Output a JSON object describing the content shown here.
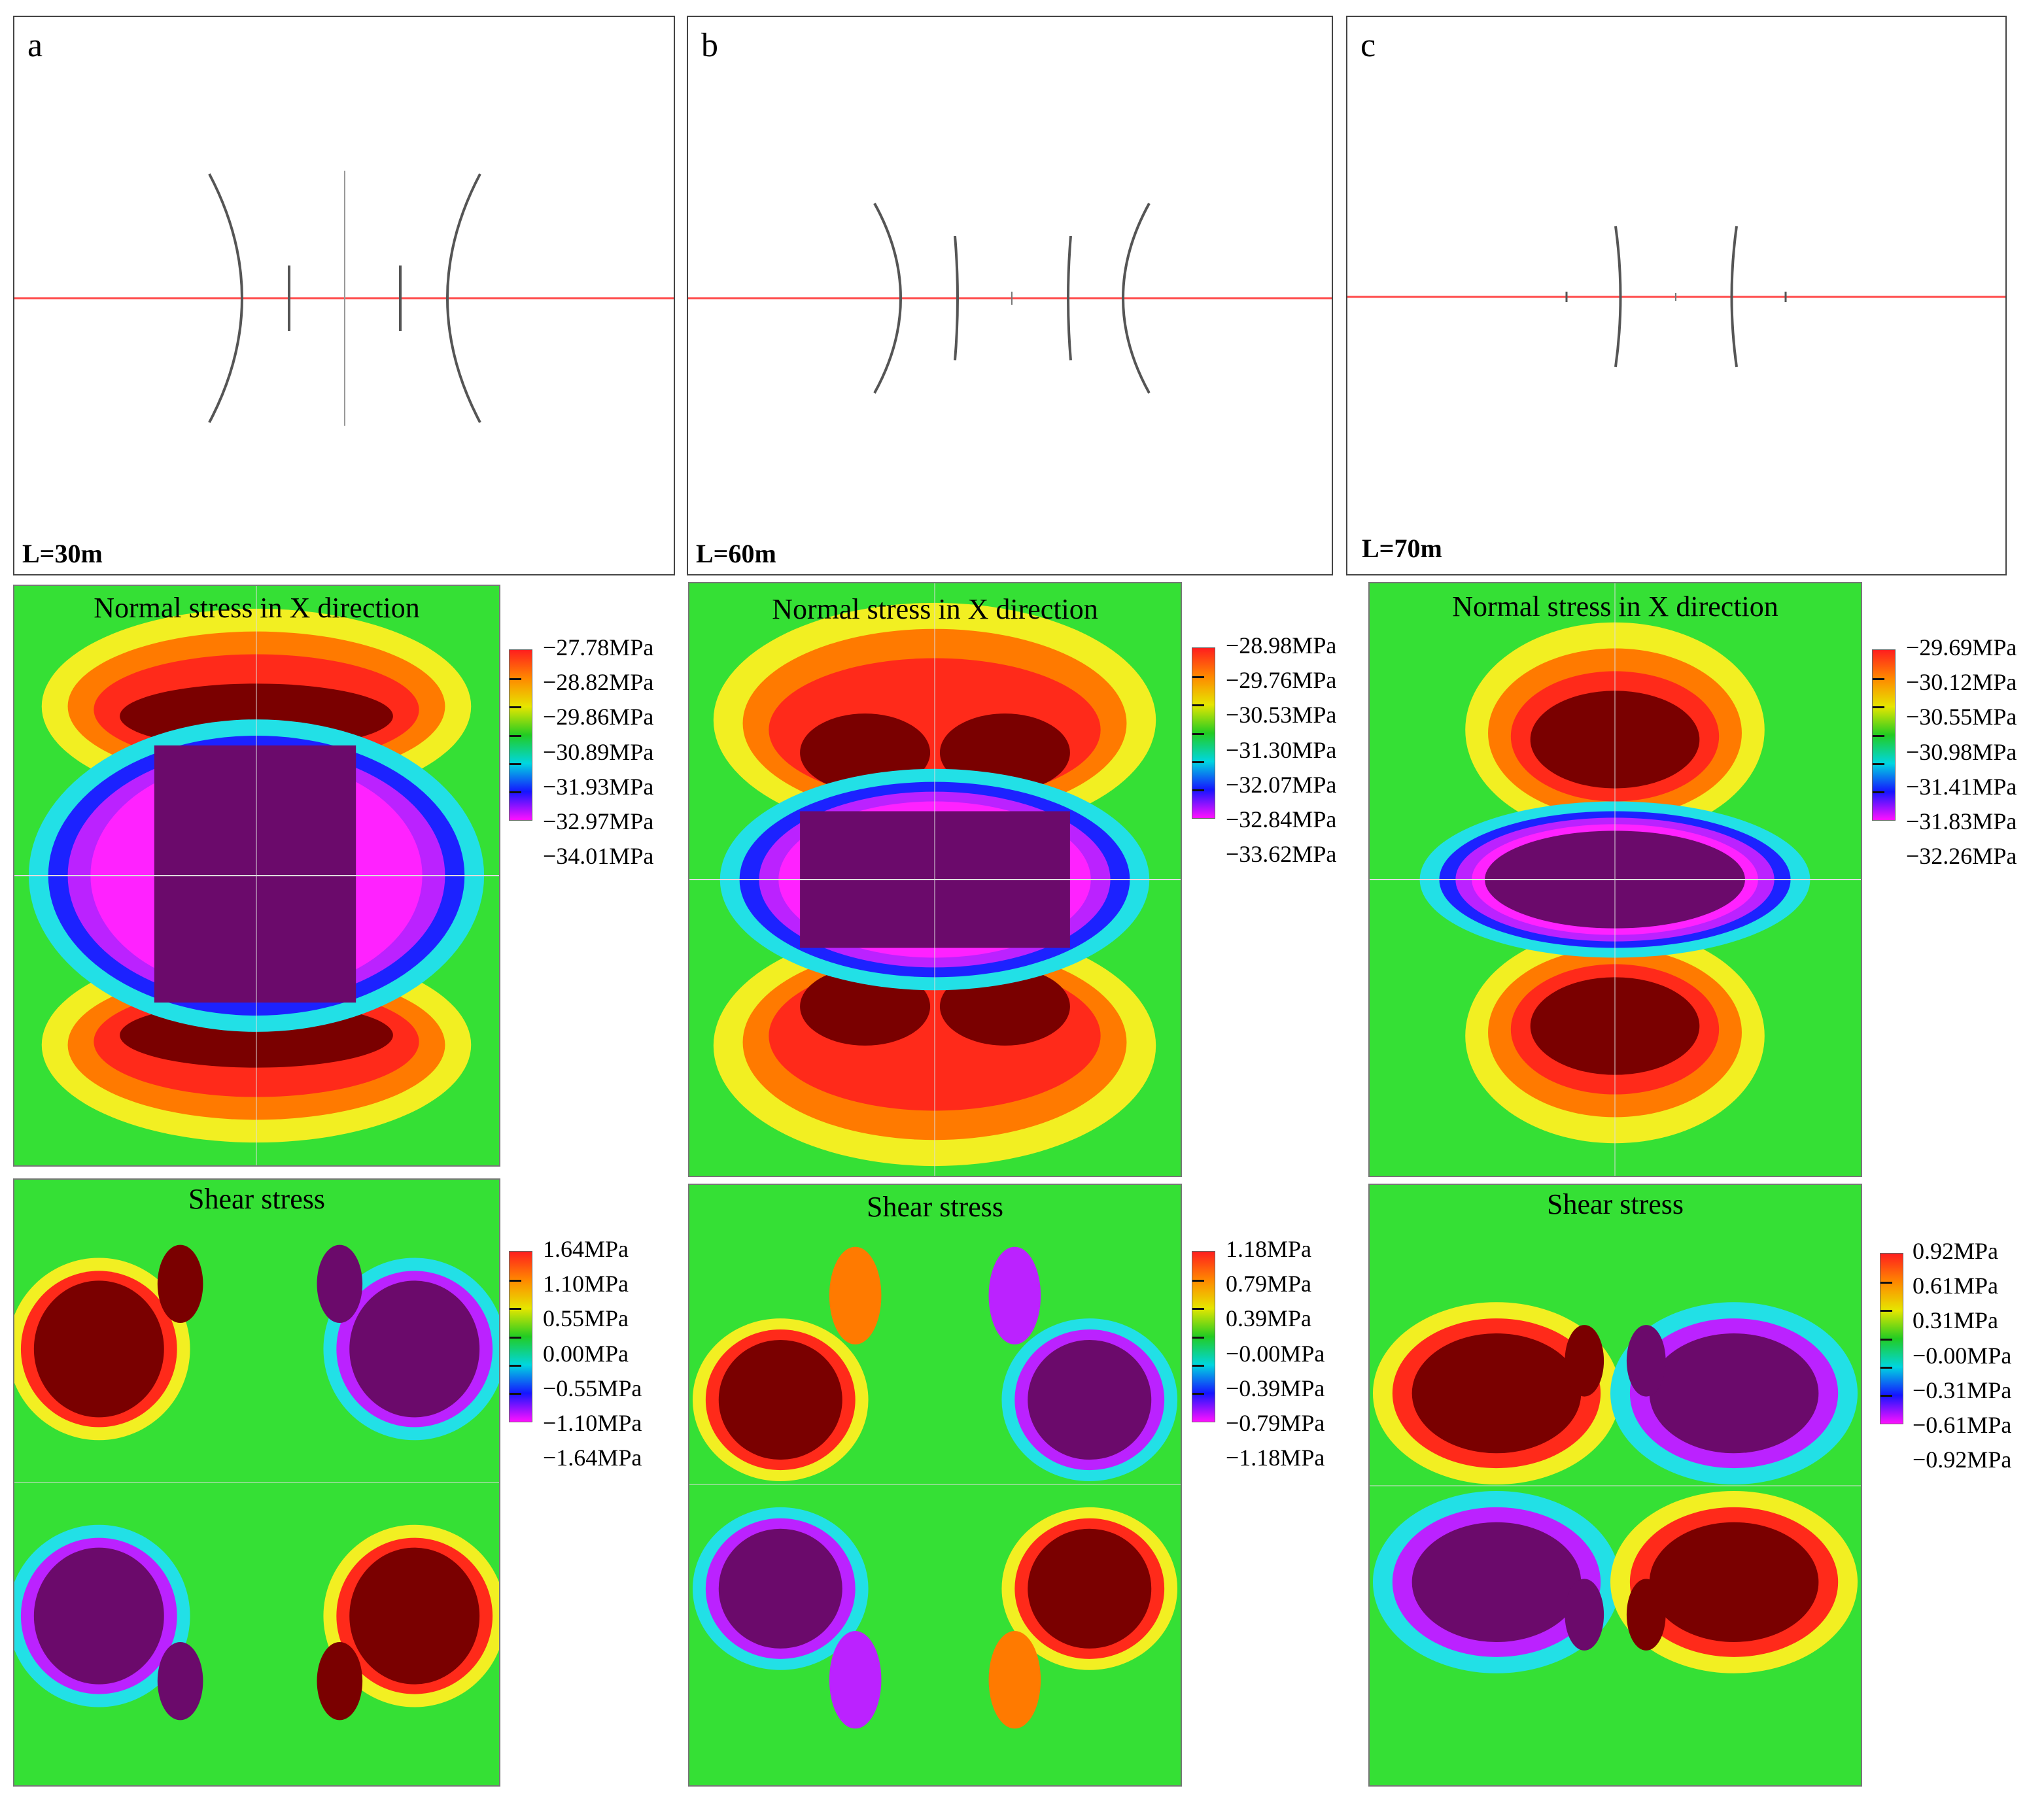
{
  "colors": {
    "green": "#35e035",
    "yellow": "#f2ef22",
    "orange": "#ff7a00",
    "red": "#ff2a1a",
    "dark_red": "#7a0000",
    "cyan": "#22e0e6",
    "blue": "#1c22ff",
    "violet": "#bb22ff",
    "magenta": "#ff22ff",
    "dark_purple": "#6b0a6b",
    "fracture_red": "#ff4a4a",
    "fracture_line": "#555555"
  },
  "panels": [
    {
      "label": "a",
      "length": "L=30m",
      "normal": {
        "title": "Normal stress in X direction",
        "scale": [
          "−27.78MPa",
          "−28.82MPa",
          "−29.86MPa",
          "−30.89MPa",
          "−31.93MPa",
          "−32.97MPa",
          "−34.01MPa"
        ]
      },
      "shear": {
        "title": "Shear stress",
        "scale": [
          "1.64MPa",
          "1.10MPa",
          "0.55MPa",
          "0.00MPa",
          "−0.55MPa",
          "−1.10MPa",
          "−1.64MPa"
        ]
      }
    },
    {
      "label": "b",
      "length": "L=60m",
      "normal": {
        "title": "Normal stress in X direction",
        "scale": [
          "−28.98MPa",
          "−29.76MPa",
          "−30.53MPa",
          "−31.30MPa",
          "−32.07MPa",
          "−32.84MPa",
          "−33.62MPa"
        ]
      },
      "shear": {
        "title": "Shear stress",
        "scale": [
          "1.18MPa",
          "0.79MPa",
          "0.39MPa",
          "−0.00MPa",
          "−0.39MPa",
          "−0.79MPa",
          "−1.18MPa"
        ]
      }
    },
    {
      "label": "c",
      "length": "L=70m",
      "normal": {
        "title": "Normal stress in X direction",
        "scale": [
          "−29.69MPa",
          "−30.12MPa",
          "−30.55MPa",
          "−30.98MPa",
          "−31.41MPa",
          "−31.83MPa",
          "−32.26MPa"
        ]
      },
      "shear": {
        "title": "Shear stress",
        "scale": [
          "0.92MPa",
          "0.61MPa",
          "0.31MPa",
          "−0.00MPa",
          "−0.31MPa",
          "−0.61MPa",
          "−0.92MPa"
        ]
      }
    }
  ]
}
